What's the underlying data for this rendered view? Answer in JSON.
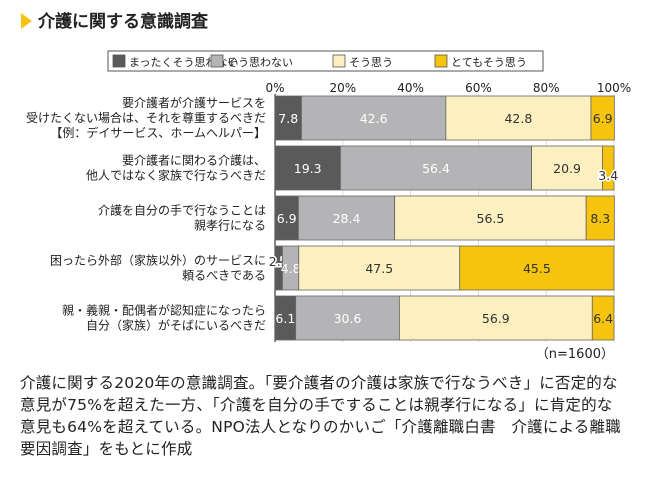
{
  "chart_data": {
    "type": "bar",
    "orientation": "horizontal-stacked-100",
    "title": "介護に関する意識調査",
    "legend": [
      "まったくそう思わない",
      "そう思わない",
      "そう思う",
      "とてもそう思う"
    ],
    "x_ticks": [
      "0%",
      "20%",
      "40%",
      "60%",
      "80%",
      "100%"
    ],
    "xlim": [
      0,
      100
    ],
    "categories": [
      [
        "要介護者が介護サービスを",
        "受けたくない場合は、それを尊重するべきだ",
        "【例：デイサービス、ホームヘルパー】"
      ],
      [
        "要介護者に関わる介護は、",
        "他人ではなく家族で行なうべきだ"
      ],
      [
        "介護を自分の手で行なうことは",
        "親孝行になる"
      ],
      [
        "困ったら外部（家族以外）のサービスに",
        "頼るべきである"
      ],
      [
        "親・義親・配偶者が認知症になったら",
        "自分（家族）がそばにいるべきだ"
      ]
    ],
    "series": [
      {
        "name": "まったくそう思わない",
        "values": [
          7.8,
          19.3,
          6.9,
          2.2,
          6.1
        ]
      },
      {
        "name": "そう思わない",
        "values": [
          42.6,
          56.4,
          28.4,
          4.8,
          30.6
        ]
      },
      {
        "name": "そう思う",
        "values": [
          42.8,
          20.9,
          56.5,
          47.5,
          56.9
        ]
      },
      {
        "name": "とてもそう思う",
        "values": [
          6.9,
          3.4,
          8.3,
          45.5,
          6.4
        ]
      }
    ],
    "series_colors": [
      "#5a5a5a",
      "#b4b4b6",
      "#fcefc0",
      "#f6c40e"
    ],
    "label_colors": [
      "#ffffff",
      "#ffffff",
      "#333333",
      "#333333"
    ],
    "sample_note": "（n=1600）"
  },
  "caption": {
    "lines": [
      "介護に関する2020年の意識調査。「要介護者の介護は家族で行なうべき」に否定的な",
      "意見が75%を超えた一方、「介護を自分の手ですることは親孝行になる」に肯定的な",
      "意見も64%を超えている。NPO法人となりのかいご「介護離職白書　介護による離職",
      "要因調査」をもとに作成"
    ]
  },
  "colors": {
    "title_marker": "#f6c40e"
  }
}
